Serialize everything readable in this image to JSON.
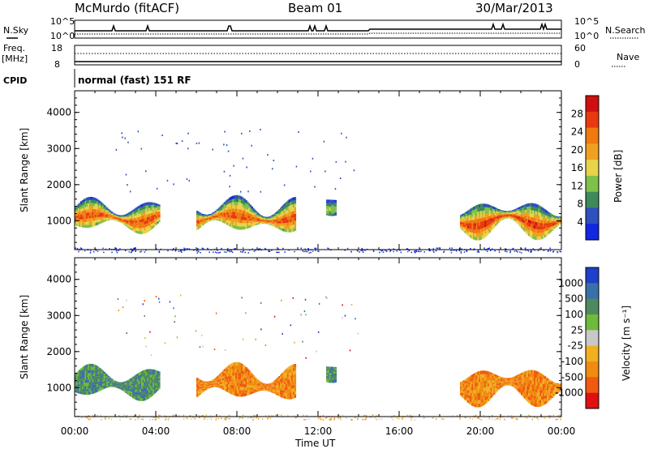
{
  "header": {
    "title": "McMurdo (fitACF)",
    "beam": "Beam 01",
    "date": "30/Mar/2013"
  },
  "status_panels": {
    "nsky_label": "N.Sky",
    "nsky_ticks": [
      "10^5",
      "10^0"
    ],
    "nsearch_label": "N.Search",
    "nsearch_ticks": [
      "10^5",
      "10^0"
    ],
    "freq_label_top": "Freq.",
    "freq_label_unit": "[MHz]",
    "freq_ticks": [
      "18",
      "8"
    ],
    "nave_label": "Nave",
    "nave_ticks": [
      "60",
      "0"
    ],
    "cpid_label": "CPID",
    "cpid_text": "normal (fast) 151 RF"
  },
  "colors": {
    "power": [
      "#1028e0",
      "#2e50c0",
      "#3f8a5a",
      "#7fc04a",
      "#e8d34a",
      "#f0a020",
      "#f07a10",
      "#e83a10",
      "#d01010"
    ],
    "velocity": [
      "#1e40c8",
      "#3a70a8",
      "#4e8a5e",
      "#6dbb3a",
      "#c8c8c8",
      "#f0b020",
      "#f08a10",
      "#f05a10",
      "#e01010"
    ]
  },
  "chart_data": [
    {
      "type": "heatmap",
      "panel": "power",
      "title": "",
      "xlabel": "Time UT",
      "ylabel": "Slant Range [km]",
      "xticks": [
        "00:00",
        "04:00",
        "08:00",
        "12:00",
        "16:00",
        "20:00",
        "00:00"
      ],
      "xlim_hours": [
        0,
        24
      ],
      "yticks": [
        "1000",
        "2000",
        "3000",
        "4000"
      ],
      "ylim": [
        200,
        4600
      ],
      "colorbar_label": "Power [dB]",
      "colorbar_ticks": [
        "4",
        "8",
        "12",
        "16",
        "20",
        "24",
        "28"
      ],
      "colorbar_range": [
        0,
        32
      ],
      "echo_regions": [
        {
          "start_hour": 0.0,
          "end_hour": 4.2,
          "low_km": 700,
          "high_km": 1550,
          "peak_db": 28
        },
        {
          "start_hour": 6.0,
          "end_hour": 10.9,
          "low_km": 650,
          "high_km": 1600,
          "peak_db": 28
        },
        {
          "start_hour": 12.4,
          "end_hour": 12.9,
          "low_km": 1250,
          "high_km": 1700,
          "peak_db": 14
        },
        {
          "start_hour": 19.0,
          "end_hour": 24.0,
          "low_km": 550,
          "high_km": 1550,
          "peak_db": 30
        }
      ]
    },
    {
      "type": "heatmap",
      "panel": "velocity",
      "title": "",
      "xlabel": "Time UT",
      "ylabel": "Slant Range [km]",
      "xticks": [
        "00:00",
        "04:00",
        "08:00",
        "12:00",
        "16:00",
        "20:00",
        "00:00"
      ],
      "xlim_hours": [
        0,
        24
      ],
      "yticks": [
        "1000",
        "2000",
        "3000",
        "4000"
      ],
      "ylim": [
        200,
        4600
      ],
      "colorbar_label": "Velocity [m s⁻¹]",
      "colorbar_ticks": [
        "1000",
        "500",
        "100",
        "25",
        "-25",
        "-100",
        "-500",
        "-1000"
      ],
      "echo_regions": [
        {
          "start_hour": 0.0,
          "end_hour": 4.2,
          "low_km": 700,
          "high_km": 1550,
          "typical_velocity": 100
        },
        {
          "start_hour": 6.0,
          "end_hour": 10.9,
          "low_km": 650,
          "high_km": 1600,
          "typical_velocity": -100
        },
        {
          "start_hour": 12.4,
          "end_hour": 12.9,
          "low_km": 1250,
          "high_km": 1700,
          "typical_velocity": 100
        },
        {
          "start_hour": 19.0,
          "end_hour": 24.0,
          "low_km": 550,
          "high_km": 1550,
          "typical_velocity": -200
        }
      ]
    }
  ]
}
